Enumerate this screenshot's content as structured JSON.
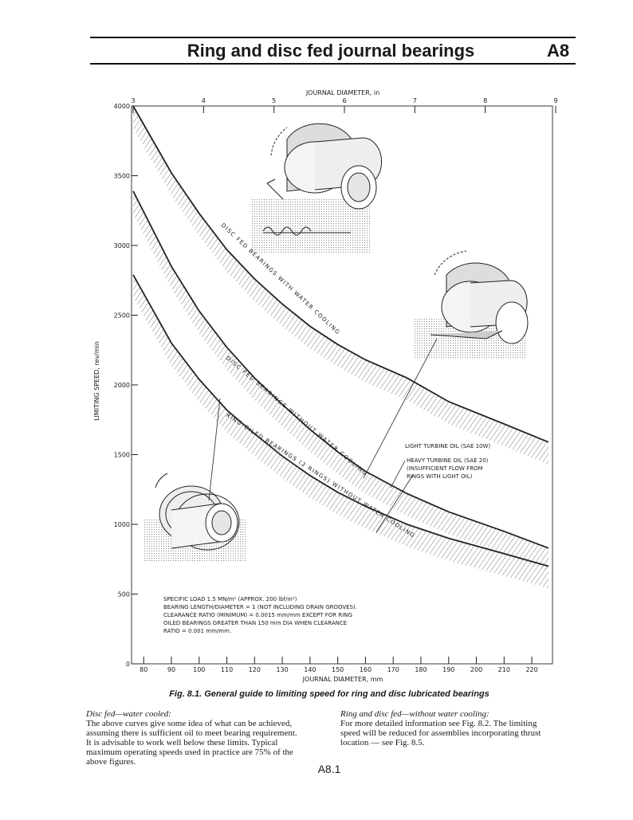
{
  "header": {
    "title": "Ring and disc fed journal bearings",
    "section": "A8"
  },
  "chart_data": {
    "type": "line",
    "x_label_top": "JOURNAL DIAMETER, in",
    "x_label": "JOURNAL DIAMETER, mm",
    "y_label": "LIMITING SPEED, rev/min",
    "xlim": [
      76.2,
      228.6
    ],
    "xticks": [
      80,
      90,
      100,
      110,
      120,
      130,
      140,
      150,
      160,
      170,
      180,
      190,
      200,
      210,
      220
    ],
    "x2lim": [
      3,
      9
    ],
    "x2ticks": [
      3,
      4,
      5,
      6,
      7,
      8,
      9
    ],
    "ylim": [
      0,
      4000
    ],
    "yticks": [
      0,
      500,
      1000,
      1500,
      2000,
      2500,
      3000,
      3500,
      4000
    ],
    "x": [
      76.2,
      90,
      100,
      110,
      120,
      130,
      140,
      150,
      160,
      175,
      190,
      210,
      226
    ],
    "series": [
      {
        "name": "DISC FED BEARINGS WITH WATER COOLING",
        "color": "#222222",
        "values": [
          4000,
          3520,
          3230,
          2970,
          2760,
          2580,
          2420,
          2290,
          2180,
          2050,
          1880,
          1720,
          1590
        ]
      },
      {
        "name": "DISC FED BEARINGS WITHOUT WATER COOLING",
        "color": "#222222",
        "values": [
          3390,
          2850,
          2530,
          2270,
          2050,
          1860,
          1680,
          1520,
          1380,
          1220,
          1090,
          950,
          830
        ]
      },
      {
        "name": "RING-OILED BEARINGS (2 RINGS) WITHOUT WATER COOLING",
        "color": "#222222",
        "values": [
          2790,
          2300,
          2040,
          1820,
          1650,
          1490,
          1350,
          1230,
          1130,
          1000,
          900,
          790,
          700
        ]
      }
    ],
    "annotations": [
      {
        "lines": [
          "LIGHT TURBINE OIL (SAE 10W)"
        ]
      },
      {
        "lines": [
          "HEAVY TURBINE OIL (SAE 20)",
          "(INSUFFICIENT FLOW FROM",
          "RINGS WITH LIGHT OIL)"
        ]
      }
    ],
    "notes": [
      "SPECIFIC LOAD 1.5 MN/m² (APPROX. 200 lbf/in²)",
      "BEARING LENGTH/DIAMETER = 1 (NOT INCLUDING DRAIN GROOVES).",
      "CLEARANCE RATIO (MINIMUM) = 0.0015 mm/mm EXCEPT FOR RING",
      "OILED BEARINGS GREATER THAN 150 mm DIA WHEN CLEARANCE",
      "RATIO = 0.001 mm/mm."
    ]
  },
  "caption": "Fig. 8.1. General guide to limiting speed for ring and disc lubricated bearings",
  "columns": [
    {
      "heading": "Disc fed—water cooled:",
      "lines": [
        "The above curves give some idea of what can be achieved,",
        "assuming there is sufficient oil to meet bearing requirement.",
        "It is advisable to work well below these limits. Typical",
        "maximum operating speeds used in practice are 75% of the",
        "above figures."
      ]
    },
    {
      "heading": "Ring and disc fed—without water cooling:",
      "lines": [
        "For more detailed information see Fig. 8.2. The limiting",
        "speed will be reduced for assemblies incorporating thrust",
        "location — see Fig. 8.5."
      ]
    }
  ],
  "page_number": "A8.1"
}
